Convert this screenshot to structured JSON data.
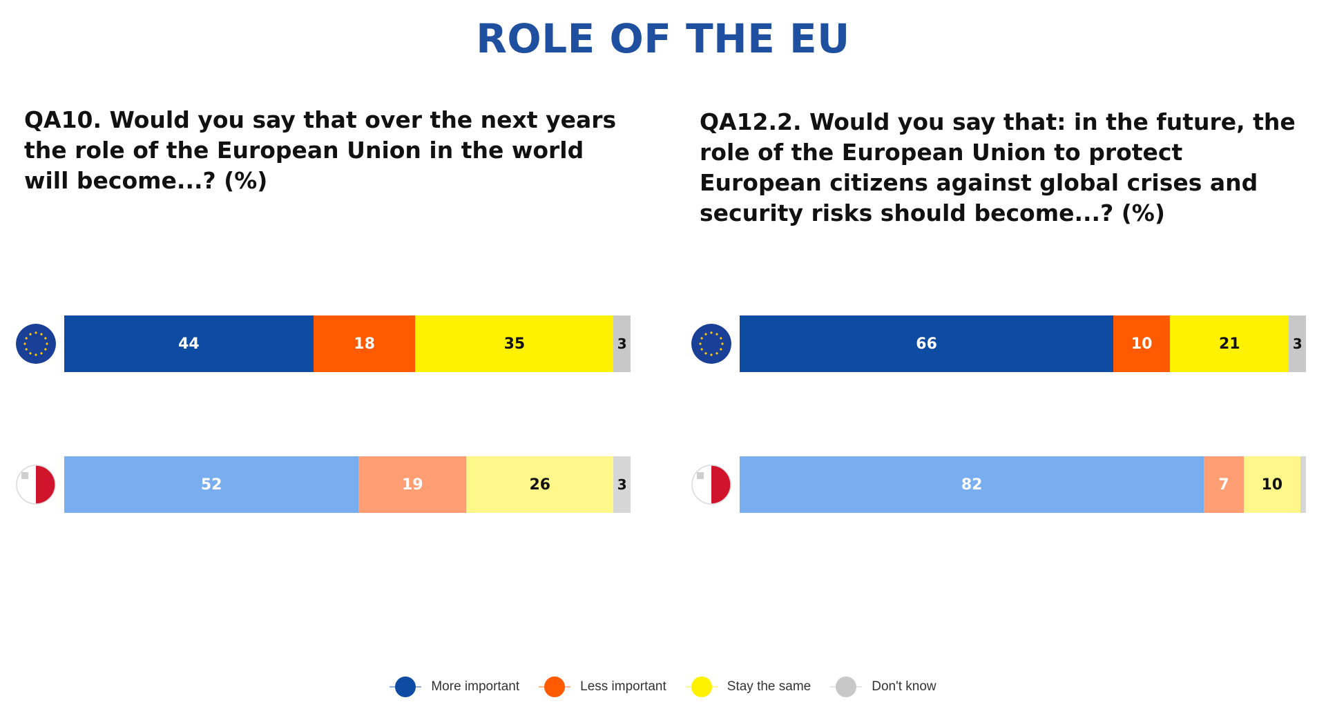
{
  "page_title": "ROLE OF THE EU",
  "colors": {
    "more_important": "#0e4ba3",
    "less_important": "#ff5a00",
    "stay_the_same": "#fff200",
    "dont_know": "#c8c8c8",
    "more_important_light": "#78aef0",
    "less_important_light": "#ff9e73",
    "stay_the_same_light": "#fff78a",
    "dont_know_light": "#d6d6d6"
  },
  "legend": [
    {
      "label": "More important",
      "color": "#0e4ba3"
    },
    {
      "label": "Less important",
      "color": "#ff5a00"
    },
    {
      "label": "Stay the same",
      "color": "#fff200"
    },
    {
      "label": "Don't know",
      "color": "#c8c8c8"
    }
  ],
  "chart_data": [
    {
      "type": "bar",
      "stacked": true,
      "orientation": "horizontal",
      "title": "QA10. Would you say that over the next years the role of the European Union in the world will become...? (%)",
      "categories": [
        "EU",
        "Malta"
      ],
      "category_icons": [
        "eu-flag-icon",
        "malta-flag-icon"
      ],
      "series": [
        {
          "name": "More important",
          "values": [
            44,
            52
          ]
        },
        {
          "name": "Less important",
          "values": [
            18,
            19
          ]
        },
        {
          "name": "Stay the same",
          "values": [
            35,
            26
          ]
        },
        {
          "name": "Don't know",
          "values": [
            3,
            3
          ]
        }
      ],
      "xlim": [
        0,
        100
      ]
    },
    {
      "type": "bar",
      "stacked": true,
      "orientation": "horizontal",
      "title": "QA12.2. Would you say that: in the future, the role of the European Union to protect European citizens against global crises and security risks should become...? (%)",
      "categories": [
        "EU",
        "Malta"
      ],
      "category_icons": [
        "eu-flag-icon",
        "malta-flag-icon"
      ],
      "series": [
        {
          "name": "More important",
          "values": [
            66,
            82
          ]
        },
        {
          "name": "Less important",
          "values": [
            10,
            7
          ]
        },
        {
          "name": "Stay the same",
          "values": [
            21,
            10
          ]
        },
        {
          "name": "Don't know",
          "values": [
            3,
            1
          ]
        }
      ],
      "value_labels": [
        [
          "66",
          "10",
          "21",
          "3"
        ],
        [
          "82",
          "7",
          "10",
          ""
        ]
      ],
      "xlim": [
        0,
        100
      ]
    }
  ]
}
